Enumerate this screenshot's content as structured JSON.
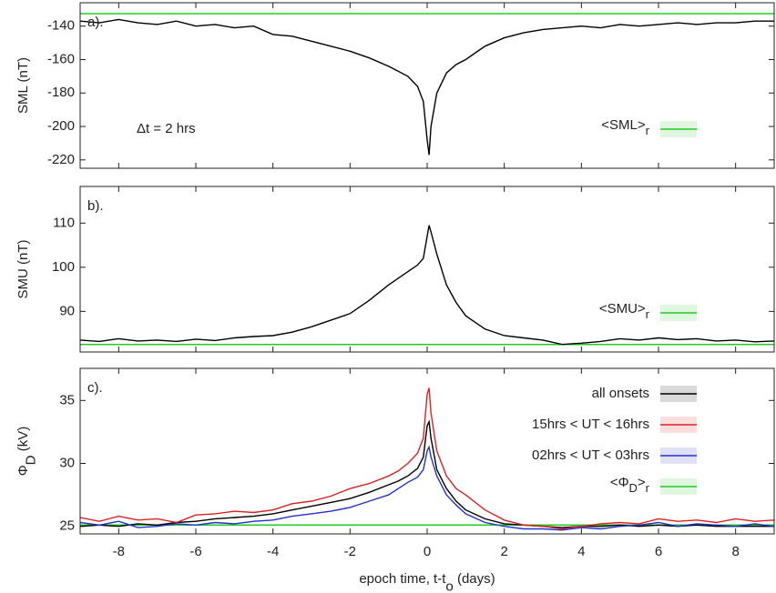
{
  "chart_data": [
    {
      "type": "line",
      "panel_label": "a).",
      "ylabel": [
        "SML  (nT)"
      ],
      "annotation": "Δt = 2 hrs",
      "x": [
        -9,
        -8.5,
        -8,
        -7.5,
        -7,
        -6.5,
        -6,
        -5.5,
        -5,
        -4.5,
        -4,
        -3.5,
        -3,
        -2.5,
        -2,
        -1.5,
        -1,
        -0.75,
        -0.5,
        -0.25,
        -0.1,
        0,
        0.05,
        0.1,
        0.25,
        0.5,
        0.75,
        1,
        1.5,
        2,
        2.5,
        3,
        3.5,
        4,
        4.5,
        5,
        5.5,
        6,
        6.5,
        7,
        7.5,
        8,
        8.5,
        9
      ],
      "series": [
        {
          "name": [
            "all onsets"
          ],
          "color": "#000000",
          "values": [
            -137,
            -138,
            -136,
            -138,
            -139,
            -137,
            -140,
            -139,
            -141,
            -140,
            -145,
            -146,
            -149,
            -152,
            -155,
            -159,
            -164,
            -167,
            -170,
            -176,
            -185,
            -208,
            -217,
            -200,
            -180,
            -168,
            -163,
            -160,
            -152,
            -147,
            -144,
            -142,
            -141,
            -140,
            -141,
            -139,
            -140,
            -139,
            -138,
            -139,
            -138,
            -138,
            -137,
            -137
          ]
        }
      ],
      "hlines": [
        {
          "name": [
            "<SML>",
            "r"
          ],
          "color": "#22cc22",
          "value": -132.5
        }
      ],
      "xlim": [
        -9,
        9
      ],
      "xticks": [
        -8,
        -6,
        -4,
        -2,
        0,
        2,
        4,
        6,
        8
      ],
      "show_xticklabels": false,
      "ylim": [
        -225,
        -126
      ],
      "yticks": [
        -220,
        -200,
        -180,
        -160,
        -140
      ],
      "legend": "lower right"
    },
    {
      "type": "line",
      "panel_label": "b).",
      "ylabel": [
        "SMU  (nT)"
      ],
      "x": [
        -9,
        -8.5,
        -8,
        -7.5,
        -7,
        -6.5,
        -6,
        -5.5,
        -5,
        -4.5,
        -4,
        -3.5,
        -3,
        -2.5,
        -2,
        -1.5,
        -1,
        -0.75,
        -0.5,
        -0.25,
        -0.1,
        0,
        0.05,
        0.1,
        0.25,
        0.5,
        0.75,
        1,
        1.5,
        2,
        2.5,
        3,
        3.5,
        4,
        4.5,
        5,
        5.5,
        6,
        6.5,
        7,
        7.5,
        8,
        8.5,
        9
      ],
      "series": [
        {
          "name": [
            "all onsets"
          ],
          "color": "#000000",
          "values": [
            83.5,
            83.2,
            83.8,
            83.3,
            83.5,
            83.2,
            83.7,
            83.4,
            84,
            84.3,
            84.5,
            85.3,
            86.5,
            88,
            89.5,
            92.5,
            96,
            97.5,
            99,
            100.5,
            102,
            107,
            109.5,
            108,
            103,
            96,
            92,
            89,
            86,
            84.5,
            84,
            83.5,
            82.5,
            82.8,
            83.2,
            83.8,
            83.5,
            84,
            83.6,
            83.8,
            83.3,
            83.5,
            83.1,
            83.3
          ]
        }
      ],
      "hlines": [
        {
          "name": [
            "<SMU>",
            "r"
          ],
          "color": "#22cc22",
          "value": 82.5
        }
      ],
      "xlim": [
        -9,
        9
      ],
      "xticks": [
        -8,
        -6,
        -4,
        -2,
        0,
        2,
        4,
        6,
        8
      ],
      "show_xticklabels": false,
      "ylim": [
        80.8,
        118.3
      ],
      "yticks": [
        90,
        100,
        110
      ],
      "legend": "lower right"
    },
    {
      "type": "line",
      "panel_label": "c).",
      "ylabel": [
        "Φ",
        "D",
        "  (kV)"
      ],
      "xlabel": [
        "epoch time, t-t",
        "o",
        "  (days)"
      ],
      "x": [
        -9,
        -8.5,
        -8,
        -7.5,
        -7,
        -6.5,
        -6,
        -5.5,
        -5,
        -4.5,
        -4,
        -3.5,
        -3,
        -2.5,
        -2,
        -1.5,
        -1,
        -0.75,
        -0.5,
        -0.25,
        -0.1,
        0,
        0.05,
        0.1,
        0.25,
        0.5,
        0.75,
        1,
        1.5,
        2,
        2.5,
        3,
        3.5,
        4,
        4.5,
        5,
        5.5,
        6,
        6.5,
        7,
        7.5,
        8,
        8.5,
        9
      ],
      "series": [
        {
          "name": [
            "all onsets"
          ],
          "color": "#000000",
          "values": [
            25,
            25.1,
            25,
            25.2,
            25.1,
            25.3,
            25.4,
            25.6,
            25.7,
            25.8,
            26,
            26.3,
            26.6,
            26.9,
            27.2,
            27.7,
            28.3,
            28.6,
            29,
            29.6,
            30.5,
            33,
            33.3,
            32,
            29.5,
            28,
            27,
            26.3,
            25.6,
            25.2,
            25.1,
            25,
            24.9,
            25,
            25,
            25.1,
            25,
            25.1,
            25,
            25.1,
            25,
            25,
            25,
            25
          ]
        },
        {
          "name": [
            "15hrs < UT < 16hrs"
          ],
          "color": "#dd2222",
          "values": [
            25.7,
            25.4,
            25.8,
            25.5,
            25.6,
            25.3,
            25.9,
            26,
            26.2,
            26.1,
            26.3,
            26.8,
            27,
            27.4,
            28,
            28.4,
            29,
            29.4,
            30,
            30.8,
            32,
            35.5,
            36,
            34,
            31,
            29,
            28,
            27.5,
            26.3,
            25.5,
            25.1,
            25,
            24.8,
            25,
            25.2,
            25.3,
            25.2,
            25.6,
            25.4,
            25.5,
            25.3,
            25.6,
            25.4,
            25.5
          ]
        },
        {
          "name": [
            "02hrs < UT < 03hrs"
          ],
          "color": "#2233cc",
          "values": [
            25.3,
            25.1,
            25.4,
            24.9,
            25,
            25.2,
            25.1,
            25.3,
            25.2,
            25.4,
            25.5,
            25.8,
            26,
            26.2,
            26.5,
            27,
            27.5,
            28,
            28.5,
            28.9,
            29.5,
            31,
            31.3,
            30.5,
            29,
            27.5,
            26.7,
            26,
            25.3,
            25,
            24.8,
            24.8,
            24.7,
            24.9,
            24.8,
            25,
            25.1,
            25.3,
            25,
            25.2,
            25.1,
            25,
            25.2,
            25
          ]
        }
      ],
      "hlines": [
        {
          "name": [
            "<Φ",
            "D",
            ">",
            "r"
          ],
          "color": "#22cc22",
          "value": 25.1
        }
      ],
      "xlim": [
        -9,
        9
      ],
      "xticks": [
        -8,
        -6,
        -4,
        -2,
        0,
        2,
        4,
        6,
        8
      ],
      "show_xticklabels": true,
      "ylim": [
        24.4,
        37.55
      ],
      "yticks": [
        25,
        30,
        35
      ],
      "legend": "upper right"
    }
  ]
}
